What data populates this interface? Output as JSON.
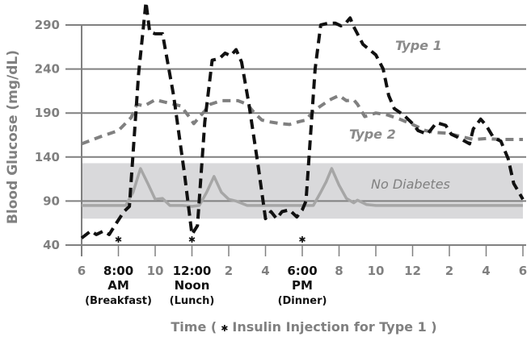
{
  "chart_data": {
    "type": "line",
    "title": "",
    "xlabel": "Time ( * Insulin Injection for Type 1 )",
    "ylabel": "Blood Glucose (mg/dL)",
    "ylim": [
      40,
      290
    ],
    "yticks": [
      40,
      90,
      140,
      190,
      240,
      290
    ],
    "grid": true,
    "x_tick_labels": [
      "6",
      "8:00",
      "10",
      "12:00",
      "2",
      "4",
      "6:00",
      "8",
      "10",
      "12",
      "2",
      "4",
      "6"
    ],
    "x_tick_sublabels": [
      {
        "tick": "8:00",
        "lines": [
          "AM",
          "(Breakfast)"
        ]
      },
      {
        "tick": "12:00",
        "lines": [
          "Noon",
          "(Lunch)"
        ]
      },
      {
        "tick": "6:00",
        "lines": [
          "PM",
          "(Dinner)"
        ]
      }
    ],
    "x_hours": [
      6,
      8,
      10,
      12,
      14,
      16,
      18,
      20,
      22,
      24,
      26,
      28,
      30
    ],
    "normal_range_band": [
      70,
      133
    ],
    "annotations": [
      "Type 1",
      "Type 2",
      "No Diabetes"
    ],
    "insulin_injections_hours": [
      8,
      12,
      18
    ],
    "series": [
      {
        "name": "Type 1",
        "style": "dashed-black",
        "points": [
          [
            6.0,
            48
          ],
          [
            6.5,
            56
          ],
          [
            6.8,
            52
          ],
          [
            7.2,
            56
          ],
          [
            7.5,
            52
          ],
          [
            7.8,
            62
          ],
          [
            8.3,
            78
          ],
          [
            8.6,
            84
          ],
          [
            9.1,
            235
          ],
          [
            9.5,
            316
          ],
          [
            9.7,
            282
          ],
          [
            10.0,
            280
          ],
          [
            10.4,
            280
          ],
          [
            11.0,
            210
          ],
          [
            11.6,
            120
          ],
          [
            12.0,
            52
          ],
          [
            12.3,
            62
          ],
          [
            12.7,
            180
          ],
          [
            13.1,
            250
          ],
          [
            13.5,
            252
          ],
          [
            13.8,
            258
          ],
          [
            14.1,
            255
          ],
          [
            14.4,
            262
          ],
          [
            14.7,
            248
          ],
          [
            15.1,
            200
          ],
          [
            15.6,
            130
          ],
          [
            16.0,
            70
          ],
          [
            16.3,
            78
          ],
          [
            16.6,
            70
          ],
          [
            16.9,
            78
          ],
          [
            17.3,
            80
          ],
          [
            17.7,
            72
          ],
          [
            18.0,
            80
          ],
          [
            18.2,
            90
          ],
          [
            18.7,
            240
          ],
          [
            19.0,
            290
          ],
          [
            19.4,
            292
          ],
          [
            19.8,
            292
          ],
          [
            20.1,
            289
          ],
          [
            20.4,
            293
          ],
          [
            20.6,
            298
          ],
          [
            20.8,
            288
          ],
          [
            21.3,
            268
          ],
          [
            22.0,
            256
          ],
          [
            22.4,
            240
          ],
          [
            22.7,
            210
          ],
          [
            23.0,
            195
          ],
          [
            23.5,
            188
          ],
          [
            24.0,
            178
          ],
          [
            24.3,
            170
          ],
          [
            24.8,
            166
          ],
          [
            25.3,
            179
          ],
          [
            25.8,
            176
          ],
          [
            26.1,
            166
          ],
          [
            26.5,
            162
          ],
          [
            27.1,
            155
          ],
          [
            27.3,
            172
          ],
          [
            27.7,
            183
          ],
          [
            28.0,
            176
          ],
          [
            28.4,
            162
          ],
          [
            28.8,
            158
          ],
          [
            29.2,
            138
          ],
          [
            29.5,
            110
          ],
          [
            30.0,
            92
          ]
        ]
      },
      {
        "name": "Type 2",
        "style": "dashed-gray",
        "points": [
          [
            6.0,
            155
          ],
          [
            7.0,
            163
          ],
          [
            8.0,
            170
          ],
          [
            8.7,
            185
          ],
          [
            9.0,
            200
          ],
          [
            9.4,
            198
          ],
          [
            10.0,
            205
          ],
          [
            10.6,
            202
          ],
          [
            11.0,
            200
          ],
          [
            11.4,
            198
          ],
          [
            11.8,
            187
          ],
          [
            12.1,
            178
          ],
          [
            12.6,
            190
          ],
          [
            13.0,
            200
          ],
          [
            13.6,
            204
          ],
          [
            14.5,
            204
          ],
          [
            15.0,
            200
          ],
          [
            15.4,
            190
          ],
          [
            15.8,
            182
          ],
          [
            16.2,
            180
          ],
          [
            16.8,
            178
          ],
          [
            17.3,
            177
          ],
          [
            17.8,
            180
          ],
          [
            18.2,
            182
          ],
          [
            18.6,
            192
          ],
          [
            19.0,
            198
          ],
          [
            19.5,
            205
          ],
          [
            20.0,
            210
          ],
          [
            20.4,
            204
          ],
          [
            20.8,
            205
          ],
          [
            21.0,
            200
          ],
          [
            21.4,
            186
          ],
          [
            22.0,
            190
          ],
          [
            22.6,
            188
          ],
          [
            23.3,
            183
          ],
          [
            24.0,
            177
          ],
          [
            24.7,
            170
          ],
          [
            25.2,
            168
          ],
          [
            25.9,
            167
          ],
          [
            26.7,
            163
          ],
          [
            27.3,
            160
          ],
          [
            28.0,
            161
          ],
          [
            28.8,
            160
          ],
          [
            29.3,
            160
          ],
          [
            30.0,
            160
          ]
        ]
      },
      {
        "name": "No Diabetes",
        "style": "solid-lightgray",
        "points": [
          [
            6.0,
            85
          ],
          [
            8.4,
            85
          ],
          [
            8.8,
            100
          ],
          [
            9.2,
            127
          ],
          [
            9.6,
            110
          ],
          [
            10.0,
            92
          ],
          [
            10.4,
            93
          ],
          [
            10.8,
            85
          ],
          [
            11.5,
            85
          ],
          [
            12.0,
            84
          ],
          [
            12.4,
            85
          ],
          [
            12.8,
            100
          ],
          [
            13.2,
            118
          ],
          [
            13.6,
            100
          ],
          [
            14.0,
            92
          ],
          [
            14.4,
            90
          ],
          [
            15.0,
            85
          ],
          [
            18.6,
            85
          ],
          [
            19.0,
            100
          ],
          [
            19.3,
            112
          ],
          [
            19.6,
            127
          ],
          [
            20.0,
            108
          ],
          [
            20.4,
            93
          ],
          [
            20.8,
            88
          ],
          [
            21.0,
            91
          ],
          [
            21.5,
            86
          ],
          [
            22.0,
            85
          ],
          [
            30.0,
            85
          ]
        ]
      }
    ]
  },
  "axis": {
    "y_label": "Blood Glucose (mg/dL)",
    "y_ticks": [
      "290",
      "240",
      "190",
      "140",
      "90",
      "40"
    ],
    "x_label_prefix": "Time (",
    "x_label_star": "✱",
    "x_label_suffix": "Insulin Injection for Type 1 )",
    "x_ticks": [
      {
        "label": "6",
        "strong": false
      },
      {
        "label": "8:00",
        "strong": true,
        "sub1": "AM",
        "sub2": "(Breakfast)"
      },
      {
        "label": "10",
        "strong": false
      },
      {
        "label": "12:00",
        "strong": true,
        "sub1": "Noon",
        "sub2": "(Lunch)"
      },
      {
        "label": "2",
        "strong": false
      },
      {
        "label": "4",
        "strong": false
      },
      {
        "label": "6:00",
        "strong": true,
        "sub1": "PM",
        "sub2": "(Dinner)"
      },
      {
        "label": "8",
        "strong": false
      },
      {
        "label": "10",
        "strong": false
      },
      {
        "label": "12",
        "strong": false
      },
      {
        "label": "2",
        "strong": false
      },
      {
        "label": "4",
        "strong": false
      },
      {
        "label": "6",
        "strong": false
      }
    ]
  },
  "labels": {
    "type1": "Type 1",
    "type2": "Type 2",
    "no_diabetes": "No Diabetes"
  },
  "colors": {
    "type1": "#111111",
    "type2": "#808080",
    "no_diabetes": "#a6a6a6",
    "band": "#d9d9db",
    "grid": "#808080",
    "axis_text": "#808080"
  }
}
